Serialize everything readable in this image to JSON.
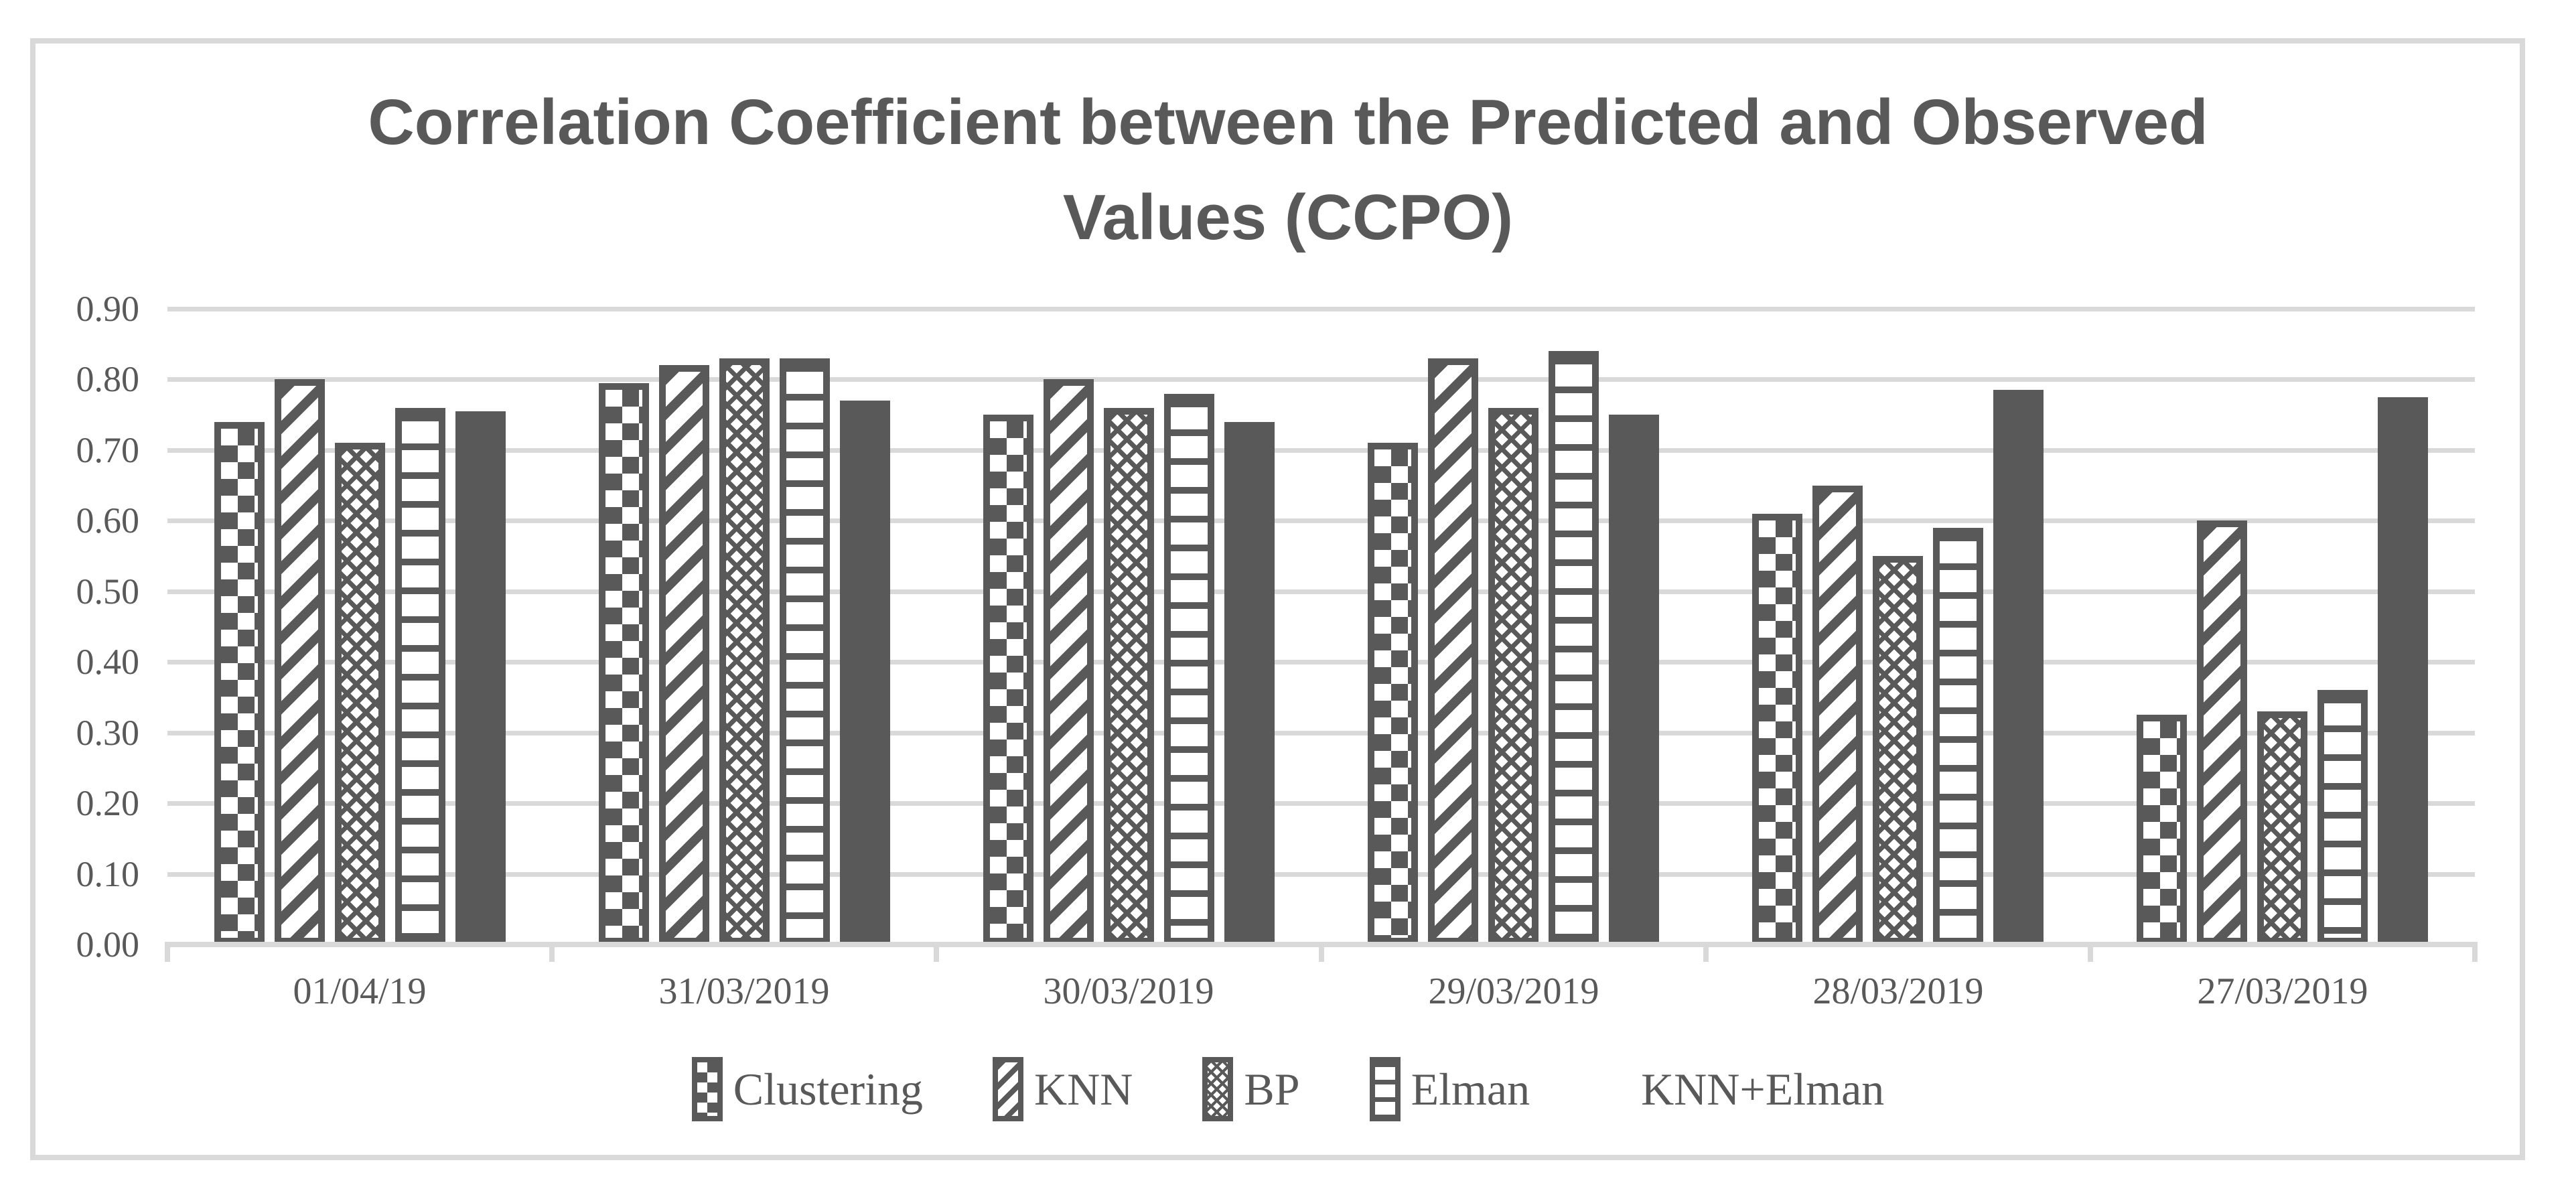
{
  "chart_data": {
    "type": "bar",
    "title": "Correlation Coefficient between the Predicted and Observed Values (CCPO)",
    "categories": [
      "01/04/19",
      "31/03/2019",
      "30/03/2019",
      "29/03/2019",
      "28/03/2019",
      "27/03/2019"
    ],
    "series": [
      {
        "name": "Clustering",
        "pattern": "checkerboard-swatch-icon",
        "values": [
          0.74,
          0.795,
          0.75,
          0.71,
          0.61,
          0.325
        ]
      },
      {
        "name": "KNN",
        "pattern": "diagonal-stripes-swatch-icon",
        "values": [
          0.8,
          0.82,
          0.8,
          0.83,
          0.65,
          0.6
        ]
      },
      {
        "name": "BP",
        "pattern": "dotted-diamond-swatch-icon",
        "values": [
          0.71,
          0.83,
          0.76,
          0.76,
          0.55,
          0.33
        ]
      },
      {
        "name": "Elman",
        "pattern": "horizontal-lines-swatch-icon",
        "values": [
          0.76,
          0.83,
          0.78,
          0.84,
          0.59,
          0.36
        ]
      },
      {
        "name": "KNN+Elman",
        "pattern": "solid-swatch-icon",
        "values": [
          0.755,
          0.77,
          0.74,
          0.75,
          0.785,
          0.775
        ]
      }
    ],
    "xlabel": "",
    "ylabel": "",
    "ylim": [
      0.0,
      0.9
    ],
    "ytick_step": 0.1,
    "ytick_labels_top_to_bottom": [
      "0.90",
      "0.80",
      "0.70",
      "0.60",
      "0.50",
      "0.40",
      "0.30",
      "0.20",
      "0.10",
      "0.00"
    ],
    "grid": "horizontal",
    "legend_position": "bottom",
    "colors": {
      "bar_fill": "#595959",
      "gridline": "#d9d9d9",
      "text": "#595959",
      "background": "#ffffff",
      "frame_border": "#d9d9d9"
    }
  }
}
